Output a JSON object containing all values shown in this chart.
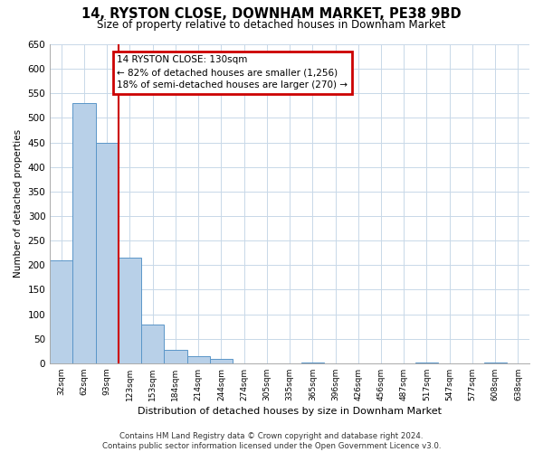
{
  "title": "14, RYSTON CLOSE, DOWNHAM MARKET, PE38 9BD",
  "subtitle": "Size of property relative to detached houses in Downham Market",
  "xlabel": "Distribution of detached houses by size in Downham Market",
  "ylabel": "Number of detached properties",
  "bin_labels": [
    "32sqm",
    "62sqm",
    "93sqm",
    "123sqm",
    "153sqm",
    "184sqm",
    "214sqm",
    "244sqm",
    "274sqm",
    "305sqm",
    "335sqm",
    "365sqm",
    "396sqm",
    "426sqm",
    "456sqm",
    "487sqm",
    "517sqm",
    "547sqm",
    "577sqm",
    "608sqm",
    "638sqm"
  ],
  "bin_values": [
    210,
    530,
    450,
    215,
    78,
    27,
    15,
    8,
    0,
    0,
    0,
    2,
    0,
    0,
    0,
    0,
    1,
    0,
    0,
    1,
    0
  ],
  "bar_color": "#b8d0e8",
  "bar_edge_color": "#5a96c8",
  "ylim": [
    0,
    650
  ],
  "yticks": [
    0,
    50,
    100,
    150,
    200,
    250,
    300,
    350,
    400,
    450,
    500,
    550,
    600,
    650
  ],
  "vline_x": 3,
  "vline_color": "#cc0000",
  "annotation_text": "14 RYSTON CLOSE: 130sqm\n← 82% of detached houses are smaller (1,256)\n18% of semi-detached houses are larger (270) →",
  "annotation_box_color": "#cc0000",
  "footer": "Contains HM Land Registry data © Crown copyright and database right 2024.\nContains public sector information licensed under the Open Government Licence v3.0.",
  "background_color": "#ffffff",
  "grid_color": "#c8d8e8"
}
